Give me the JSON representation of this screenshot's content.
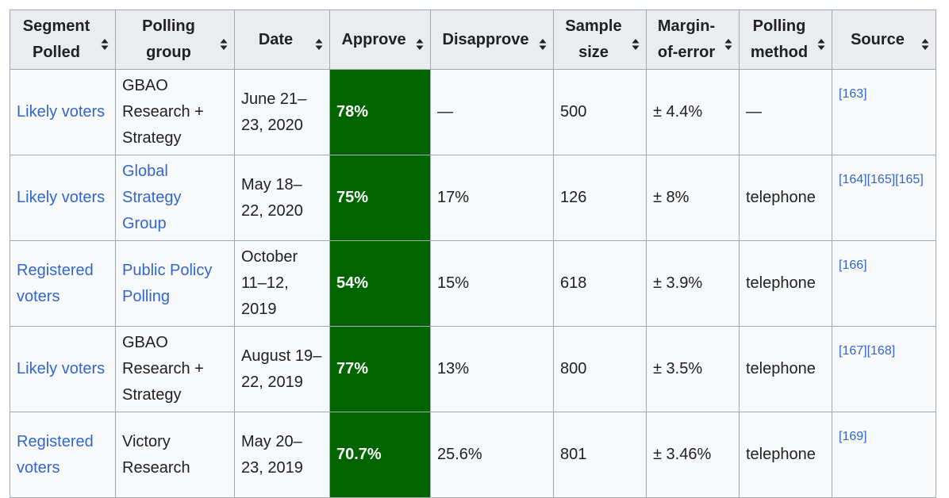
{
  "columns": [
    {
      "label": "Segment Polled"
    },
    {
      "label": "Polling group"
    },
    {
      "label": "Date"
    },
    {
      "label": "Approve"
    },
    {
      "label": "Disapprove"
    },
    {
      "label": "Sample size"
    },
    {
      "label": "Margin-of-error"
    },
    {
      "label": "Polling method"
    },
    {
      "label": "Source"
    }
  ],
  "rows": [
    {
      "segment": "Likely voters",
      "group": "GBAO Research + Strategy",
      "group_is_link": false,
      "date": "June 21–23, 2020",
      "approve": "78%",
      "disapprove": "—",
      "sample": "500",
      "moe": "± 4.4%",
      "method": "—",
      "source": "[163]"
    },
    {
      "segment": "Likely voters",
      "group": "Global Strategy Group",
      "group_is_link": true,
      "date": "May 18–22, 2020",
      "approve": "75%",
      "disapprove": "17%",
      "sample": "126",
      "moe": "± 8%",
      "method": "telephone",
      "source": "[164][165][165]"
    },
    {
      "segment": "Registered voters",
      "group": "Public Policy Polling",
      "group_is_link": true,
      "date": "October 11–12, 2019",
      "approve": "54%",
      "disapprove": "15%",
      "sample": "618",
      "moe": "± 3.9%",
      "method": "telephone",
      "source": "[166]"
    },
    {
      "segment": "Likely voters",
      "group": "GBAO Research + Strategy",
      "group_is_link": false,
      "date": "August 19–22, 2019",
      "approve": "77%",
      "disapprove": "13%",
      "sample": "800",
      "moe": "± 3.5%",
      "method": "telephone",
      "source": "[167][168]"
    },
    {
      "segment": "Registered voters",
      "group": "Victory Research",
      "group_is_link": false,
      "date": "May 20–23, 2019",
      "approve": "70.7%",
      "disapprove": "25.6%",
      "sample": "801",
      "moe": "± 3.46%",
      "method": "telephone",
      "source": "[169]"
    }
  ],
  "colors": {
    "approve_bg": "#006400",
    "link": "#3366cc",
    "header_bg": "#eaecf0",
    "border": "#a2a9b1"
  },
  "icons": {
    "sort": "sort-both-icon"
  }
}
